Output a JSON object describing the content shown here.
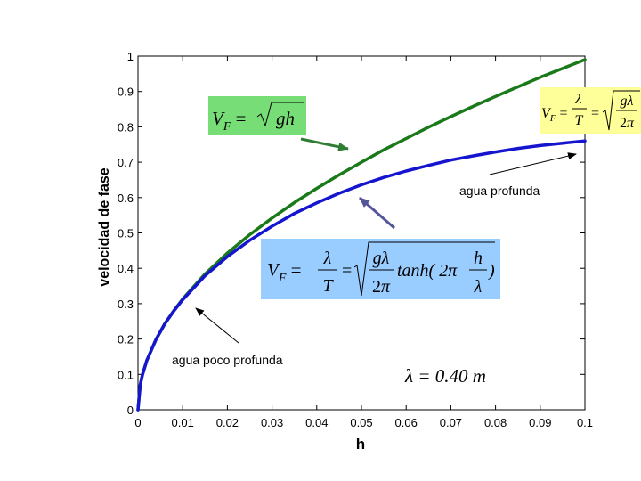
{
  "chart_data": {
    "type": "line",
    "xlabel": "h",
    "ylabel": "velocidad de fase",
    "xlim": [
      0,
      0.1
    ],
    "ylim": [
      0,
      1
    ],
    "x_ticks": [
      "0",
      "0.01",
      "0.02",
      "0.03",
      "0.04",
      "0.05",
      "0.06",
      "0.07",
      "0.08",
      "0.09",
      "0.1"
    ],
    "y_ticks": [
      "0",
      "0.1",
      "0.2",
      "0.3",
      "0.4",
      "0.5",
      "0.6",
      "0.7",
      "0.8",
      "0.9",
      "1"
    ],
    "grid": false,
    "wavelength": "λ = 0.40 m",
    "series": [
      {
        "color": "#1a7a1a",
        "x": [
          0,
          0.0005,
          0.001,
          0.002,
          0.004,
          0.006,
          0.008,
          0.01,
          0.015,
          0.02,
          0.025,
          0.03,
          0.035,
          0.04,
          0.045,
          0.05,
          0.055,
          0.06,
          0.065,
          0.07,
          0.075,
          0.08,
          0.085,
          0.09,
          0.095,
          0.1
        ],
        "y": [
          0,
          0.07,
          0.099,
          0.14,
          0.198,
          0.243,
          0.28,
          0.313,
          0.384,
          0.443,
          0.495,
          0.542,
          0.586,
          0.626,
          0.664,
          0.7,
          0.735,
          0.767,
          0.799,
          0.829,
          0.858,
          0.886,
          0.913,
          0.94,
          0.965,
          0.99
        ]
      },
      {
        "color": "#1515d0",
        "x": [
          0,
          0.0005,
          0.001,
          0.002,
          0.004,
          0.006,
          0.008,
          0.01,
          0.015,
          0.02,
          0.025,
          0.03,
          0.035,
          0.04,
          0.045,
          0.05,
          0.055,
          0.06,
          0.065,
          0.07,
          0.075,
          0.08,
          0.085,
          0.09,
          0.095,
          0.1
        ],
        "y": [
          0,
          0.07,
          0.099,
          0.14,
          0.198,
          0.243,
          0.279,
          0.311,
          0.379,
          0.433,
          0.479,
          0.519,
          0.555,
          0.585,
          0.612,
          0.636,
          0.657,
          0.675,
          0.691,
          0.706,
          0.718,
          0.729,
          0.739,
          0.747,
          0.754,
          0.76
        ]
      }
    ],
    "annotations": {
      "deep_label": "agua profunda",
      "shallow_label": "agua poco profunda"
    },
    "formula_boxes": {
      "green_color": "#77dd77",
      "yellow_color": "#ffff99",
      "blue_color": "#99ccff",
      "arrow_green": "#2e7d32",
      "arrow_purple": "#555599"
    }
  }
}
